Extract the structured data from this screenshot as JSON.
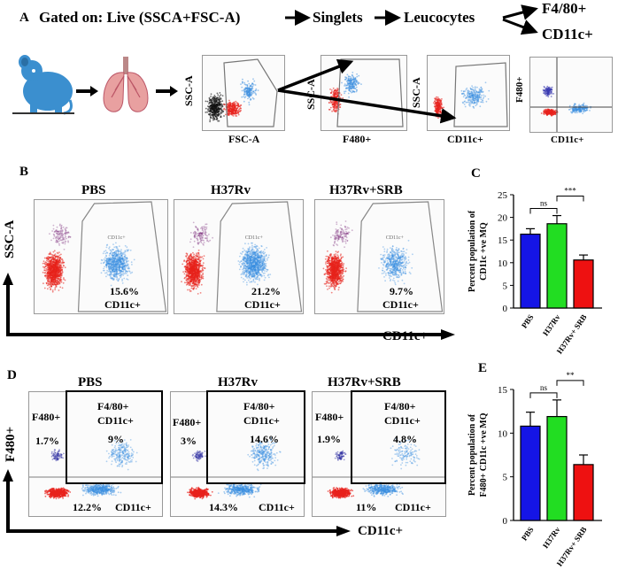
{
  "panelA": {
    "letter": "A",
    "gating_title": "Gated on: Live (SSCA+FSC-A)",
    "step_singlets": "Singlets",
    "step_leucocytes": "Leucocytes",
    "branch_f480": "F4/80+",
    "branch_cd11c": "CD11c+",
    "plot1": {
      "y": "SSC-A",
      "x": "FSC-A"
    },
    "plot2": {
      "y": "SSC-A",
      "x": "F480+"
    },
    "plot3": {
      "y": "SSC-A",
      "x": "CD11c+"
    },
    "plot4": {
      "y": "F480+",
      "x": "CD11c+"
    }
  },
  "panelB": {
    "letter": "B",
    "yaxis": "SSC-A",
    "xaxis": "CD11c+",
    "plots": [
      {
        "group": "PBS",
        "percent": "15.6%",
        "gate_label": "CD11c+"
      },
      {
        "group": "H37Rv",
        "percent": "21.2%",
        "gate_label": "CD11c+"
      },
      {
        "group": "H37Rv+SRB",
        "percent": "9.7%",
        "gate_label": "CD11c+"
      }
    ]
  },
  "panelD": {
    "letter": "D",
    "yaxis": "F480+",
    "xaxis": "CD11c+",
    "plots": [
      {
        "group": "PBS",
        "f480_label": "F480+",
        "f480_pct": "1.7%",
        "dp_label1": "F4/80+",
        "dp_label2": "CD11c+",
        "dp_pct": "9%",
        "cd11c_pct": "12.2%",
        "cd11c_label": "CD11c+"
      },
      {
        "group": "H37Rv",
        "f480_label": "F480+",
        "f480_pct": "3%",
        "dp_label1": "F4/80+",
        "dp_label2": "CD11c+",
        "dp_pct": "14.6%",
        "cd11c_pct": "14.3%",
        "cd11c_label": "CD11c+"
      },
      {
        "group": "H37Rv+SRB",
        "f480_label": "F480+",
        "f480_pct": "1.9%",
        "dp_label1": "F4/80+",
        "dp_label2": "CD11c+",
        "dp_pct": "4.8%",
        "cd11c_pct": "11%",
        "cd11c_label": "CD11c+"
      }
    ]
  },
  "colors": {
    "pbs": "#1515e6",
    "h37rv": "#22dd22",
    "srb": "#ee1111",
    "dot_red": "#e8221c",
    "dot_blue": "#3a8ee0"
  },
  "chart_data": [
    {
      "panel": "C",
      "type": "bar",
      "categories": [
        "PBS",
        "H37Rv",
        "H37Rv+ SRB"
      ],
      "values": [
        16.3,
        18.6,
        10.6
      ],
      "errors": [
        1.2,
        1.8,
        1.1
      ],
      "ylabel": "Percent population of CD11c +ve MQ",
      "ylim": [
        0,
        25
      ],
      "yticks": [
        0,
        5,
        10,
        15,
        20,
        25
      ],
      "significance": [
        {
          "from": 0,
          "to": 1,
          "label": "ns"
        },
        {
          "from": 1,
          "to": 2,
          "label": "***"
        }
      ]
    },
    {
      "panel": "E",
      "type": "bar",
      "categories": [
        "PBS",
        "H37Rv",
        "H37Rv+ SRB"
      ],
      "values": [
        10.8,
        11.9,
        6.4
      ],
      "errors": [
        1.6,
        1.9,
        1.1
      ],
      "ylabel": "Percent population of F480+ CD11c +ve MQ",
      "ylim": [
        0,
        15
      ],
      "yticks": [
        0,
        5,
        10,
        15
      ],
      "significance": [
        {
          "from": 0,
          "to": 1,
          "label": "ns"
        },
        {
          "from": 1,
          "to": 2,
          "label": "**"
        }
      ]
    }
  ]
}
